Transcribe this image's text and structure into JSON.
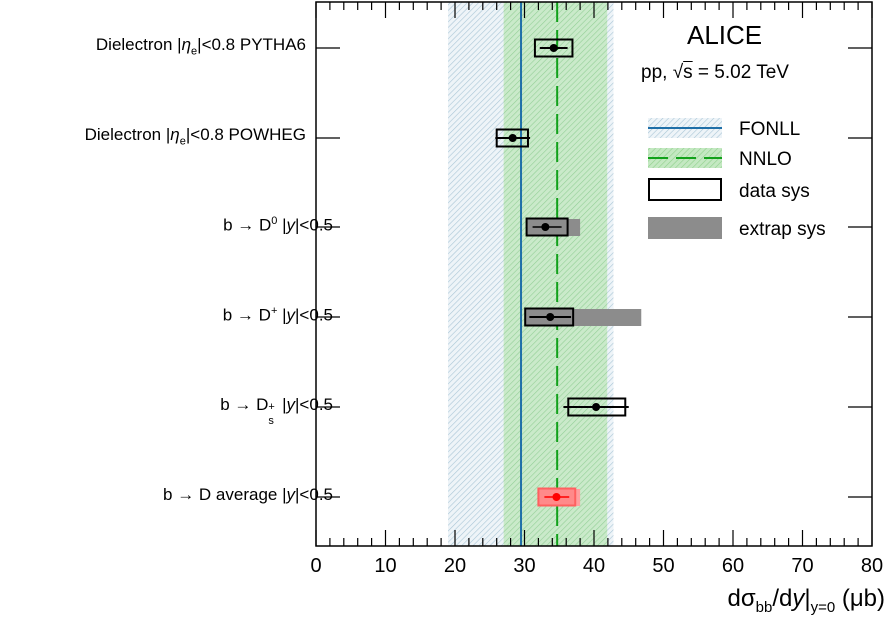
{
  "labels": {
    "experiment": "ALICE",
    "system_prefix": "pp, ",
    "sqrt_symbol": "√",
    "s": "s",
    "system_suffix": " = 5.02 TeV",
    "x_axis": {
      "d": "d",
      "sigma": "σ",
      "bb": "bb",
      "dy": "/d",
      "y": "y",
      "bar": "|",
      "sub": "y=0",
      "unit": " (μb)"
    }
  },
  "rows": [
    {
      "pre": "Dielectron |",
      "eta": "η",
      "eta_sub": "e",
      "post": "|<0.8 PYTHA6"
    },
    {
      "pre": "Dielectron |",
      "eta": "η",
      "eta_sub": "e",
      "post": "|<0.8 POWHEG"
    },
    {
      "pre": "b → D",
      "sup": "0",
      "mid": " |",
      "y": "y",
      "post": "|<0.5"
    },
    {
      "pre": "b → D",
      "sup": "+",
      "mid": " |",
      "y": "y",
      "post": "|<0.5"
    },
    {
      "pre": "b → D",
      "sup": "+",
      "sub": "s",
      "mid": " |",
      "y": "y",
      "post": "|<0.5"
    },
    {
      "pre": "b → D average |",
      "y": "y",
      "post": "|<0.5"
    }
  ],
  "legend": [
    {
      "key": "fonll",
      "label": "FONLL"
    },
    {
      "key": "nnlo",
      "label": "NNLO"
    },
    {
      "key": "data_sys",
      "label": "data sys"
    },
    {
      "key": "extrap_sys",
      "label": "extrap sys"
    }
  ],
  "colors": {
    "fonll_line": "#1f6fa8",
    "fonll_band": "#a9c6d6",
    "nnlo_line": "#11a11a",
    "nnlo_band": "#a6dba4",
    "extrap_band": "#8c8c8c",
    "average_marker": "#ff0000",
    "average_box": "#ff6060",
    "average_extrap": "#ffa0a0"
  },
  "chart_data": {
    "type": "scatter",
    "title": "",
    "xlabel": "dσbb̄/dy|y=0 (μb)",
    "ylabel": "",
    "xlim": [
      0,
      80
    ],
    "x_ticks": [
      0,
      10,
      20,
      30,
      40,
      50,
      60,
      70,
      80
    ],
    "grid": false,
    "legend_position": "top-right",
    "measurements": [
      {
        "label": "Dielectron |ηe|<0.8 PYTHA6",
        "value": 34.2,
        "stat_err": 2.0,
        "data_sys": [
          31.5,
          36.9
        ],
        "extrap_sys": null
      },
      {
        "label": "Dielectron |ηe|<0.8 POWHEG",
        "value": 28.3,
        "stat_err": 2.5,
        "data_sys": [
          26.0,
          30.5
        ],
        "extrap_sys": null
      },
      {
        "label": "b → D0 |y|<0.5",
        "value": 33.0,
        "stat_err": 0,
        "data_sys": [
          30.3,
          36.2
        ],
        "extrap_sys": [
          30.3,
          38.0
        ]
      },
      {
        "label": "b → D+ |y|<0.5",
        "value": 33.7,
        "stat_err": 3.0,
        "data_sys": [
          30.1,
          37.0
        ],
        "extrap_sys": [
          30.1,
          46.8
        ]
      },
      {
        "label": "b → Ds+ |y|<0.5",
        "value": 40.3,
        "stat_err": 4.7,
        "data_sys": [
          36.3,
          44.5
        ],
        "extrap_sys": null
      },
      {
        "label": "b → D average |y|<0.5",
        "value": 34.6,
        "stat_err": 0,
        "data_sys": [
          32.0,
          37.3
        ],
        "extrap_sys": [
          32.0,
          38.0
        ]
      }
    ],
    "theory": [
      {
        "name": "FONLL",
        "central": 29.5,
        "band": [
          19.0,
          42.8
        ]
      },
      {
        "name": "NNLO",
        "central": 34.7,
        "band": [
          27.0,
          41.9
        ]
      }
    ]
  }
}
